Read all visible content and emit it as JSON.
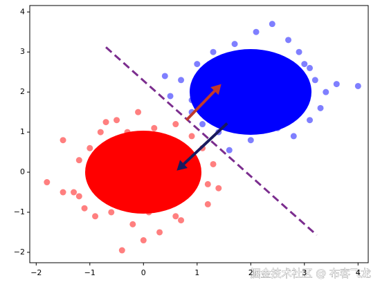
{
  "chart_data": {
    "type": "scatter",
    "series": [
      {
        "color": "#ff0000",
        "x": [
          -1.8,
          -1.5,
          -1.3,
          -1.2,
          -1.1,
          -1.0,
          -0.9,
          -0.8,
          -0.7,
          -0.6,
          -0.5,
          -0.4,
          -0.3,
          -0.2,
          -0.1,
          0.0,
          0.1,
          0.2,
          0.3,
          0.4,
          0.5,
          0.6,
          0.7,
          0.8,
          0.9,
          1.0,
          1.1,
          1.2,
          1.3,
          -0.4,
          0.4,
          -0.9,
          0.9,
          -0.6,
          0.6,
          0.0,
          -1.2,
          1.2,
          -0.3,
          0.3,
          -1.5,
          1.4,
          0.0,
          -0.7,
          0.7
        ],
        "y": [
          -0.25,
          0.8,
          -0.5,
          0.3,
          -0.9,
          0.6,
          -1.1,
          1.0,
          0.2,
          -0.6,
          1.3,
          -1.95,
          0.5,
          -1.3,
          1.5,
          -0.2,
          -1.0,
          1.1,
          -1.5,
          0.7,
          -0.7,
          1.2,
          -1.2,
          0.4,
          -0.4,
          -0.1,
          0.6,
          -0.8,
          0.2,
          0.0,
          0.1,
          -0.3,
          0.9,
          -1.0,
          -1.1,
          0.8,
          -0.6,
          -0.3,
          1.0,
          -0.9,
          -0.5,
          -0.4,
          -1.7,
          1.25,
          0.5
        ]
      },
      {
        "color": "#0000ff",
        "x": [
          0.5,
          0.7,
          0.9,
          1.0,
          1.1,
          1.2,
          1.3,
          1.4,
          1.5,
          1.6,
          1.7,
          1.8,
          1.9,
          2.0,
          2.1,
          2.2,
          2.3,
          2.4,
          2.5,
          2.6,
          2.7,
          2.8,
          2.9,
          3.0,
          3.1,
          3.2,
          3.3,
          4.0,
          1.3,
          0.4,
          2.4,
          1.6,
          3.4,
          2.0,
          1.1,
          2.9,
          1.8,
          2.5,
          0.9,
          3.1,
          2.2,
          1.5,
          2.7,
          1.0,
          3.6
        ],
        "y": [
          1.9,
          2.3,
          1.5,
          2.7,
          1.2,
          2.0,
          3.0,
          1.0,
          2.5,
          0.55,
          3.2,
          1.4,
          2.2,
          0.8,
          3.5,
          1.7,
          2.9,
          3.7,
          1.1,
          2.4,
          3.3,
          0.9,
          2.0,
          2.7,
          1.3,
          2.3,
          1.6,
          2.15,
          1.8,
          2.4,
          2.0,
          2.4,
          2.0,
          1.2,
          2.5,
          3.0,
          2.8,
          1.5,
          1.8,
          2.6,
          2.3,
          1.6,
          1.9,
          2.1,
          2.2
        ]
      }
    ],
    "boundary": {
      "color": "#7b2d8e",
      "x": [
        -0.7,
        3.23
      ],
      "y": [
        3.12,
        -1.57
      ]
    },
    "arrows": [
      {
        "color": "#c0392b",
        "x": [
          0.8,
          1.45
        ],
        "y": [
          1.3,
          2.2
        ]
      },
      {
        "color": "#1a1a5e",
        "x": [
          1.56,
          0.62
        ],
        "y": [
          1.22,
          0.04
        ]
      }
    ],
    "xlim": [
      -2.12,
      4.19
    ],
    "ylim": [
      -2.26,
      4.16
    ],
    "xticks": [
      {
        "value": -2,
        "label": "−2"
      },
      {
        "value": -1,
        "label": "−1"
      },
      0,
      1,
      2,
      3,
      4
    ],
    "yticks": [
      {
        "value": -2,
        "label": "−2"
      },
      {
        "value": -1,
        "label": "−1"
      },
      0,
      1,
      2,
      3,
      4
    ],
    "watermark": "掘金技术社区 @ 布客飞龙"
  }
}
